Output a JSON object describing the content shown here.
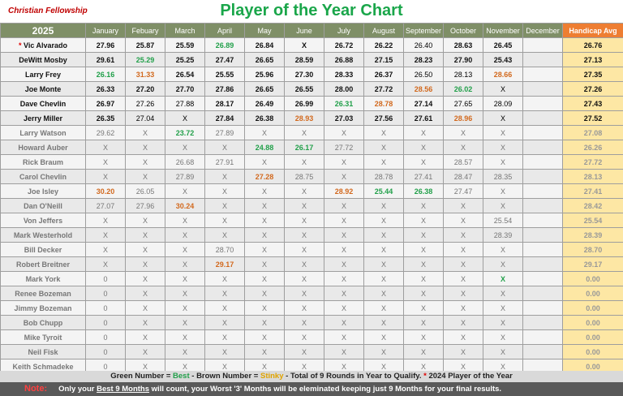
{
  "brand": "Christian Fellowship",
  "title": "Player of the Year Chart",
  "header": {
    "year": "2025",
    "months": [
      "January",
      "Febuary",
      "March",
      "April",
      "May",
      "June",
      "July",
      "August",
      "September",
      "October",
      "November",
      "December"
    ],
    "handicap": "Handicap Avg"
  },
  "rows": [
    {
      "name": "Vic Alvarado",
      "star": true,
      "cells": [
        [
          "27.96",
          "s"
        ],
        [
          "25.87",
          "s"
        ],
        [
          "25.59",
          "s"
        ],
        [
          "26.89",
          "g"
        ],
        [
          "26.84",
          "s"
        ],
        [
          "X",
          "xx"
        ],
        [
          "26.72",
          "s"
        ],
        [
          "26.22",
          "s"
        ],
        [
          "26.40",
          ""
        ],
        [
          "28.63",
          "s"
        ],
        [
          "26.45",
          "s"
        ],
        [
          "",
          ""
        ]
      ],
      "avg": "26.76",
      "dim": false
    },
    {
      "name": "DeWitt Mosby",
      "cells": [
        [
          "29.61",
          "s"
        ],
        [
          "25.29",
          "g"
        ],
        [
          "25.25",
          "s"
        ],
        [
          "27.47",
          "s"
        ],
        [
          "26.65",
          "s"
        ],
        [
          "28.59",
          "s"
        ],
        [
          "26.88",
          "s"
        ],
        [
          "27.15",
          "s"
        ],
        [
          "28.23",
          "s"
        ],
        [
          "27.90",
          "s"
        ],
        [
          "25.43",
          "s"
        ],
        [
          "",
          ""
        ]
      ],
      "avg": "27.13",
      "dim": false
    },
    {
      "name": "Larry Frey",
      "cells": [
        [
          "26.16",
          "g"
        ],
        [
          "31.33",
          "b"
        ],
        [
          "26.54",
          "s"
        ],
        [
          "25.55",
          "s"
        ],
        [
          "25.96",
          "s"
        ],
        [
          "27.30",
          "s"
        ],
        [
          "28.33",
          "s"
        ],
        [
          "26.37",
          "s"
        ],
        [
          "26.50",
          ""
        ],
        [
          "28.13",
          ""
        ],
        [
          "28.66",
          "b"
        ],
        [
          "",
          ""
        ]
      ],
      "avg": "27.35",
      "dim": false
    },
    {
      "name": "Joe Monte",
      "cells": [
        [
          "26.33",
          "s"
        ],
        [
          "27.20",
          "s"
        ],
        [
          "27.70",
          "s"
        ],
        [
          "27.86",
          "s"
        ],
        [
          "26.65",
          "s"
        ],
        [
          "26.55",
          "s"
        ],
        [
          "28.00",
          "s"
        ],
        [
          "27.72",
          "s"
        ],
        [
          "28.56",
          "b"
        ],
        [
          "26.02",
          "g"
        ],
        [
          "X",
          ""
        ],
        [
          "",
          ""
        ]
      ],
      "avg": "27.26",
      "dim": false
    },
    {
      "name": "Dave Chevlin",
      "cells": [
        [
          "26.97",
          "s"
        ],
        [
          "27.26",
          ""
        ],
        [
          "27.88",
          ""
        ],
        [
          "28.17",
          "s"
        ],
        [
          "26.49",
          "s"
        ],
        [
          "26.99",
          "s"
        ],
        [
          "26.31",
          "g"
        ],
        [
          "28.78",
          "b"
        ],
        [
          "27.14",
          "s"
        ],
        [
          "27.65",
          ""
        ],
        [
          "28.09",
          ""
        ],
        [
          "",
          ""
        ]
      ],
      "avg": "27.43",
      "dim": false
    },
    {
      "name": "Jerry Miller",
      "cells": [
        [
          "26.35",
          "s"
        ],
        [
          "27.04",
          ""
        ],
        [
          "X",
          ""
        ],
        [
          "27.84",
          "s"
        ],
        [
          "26.38",
          "s"
        ],
        [
          "28.93",
          "b"
        ],
        [
          "27.03",
          "s"
        ],
        [
          "27.56",
          "s"
        ],
        [
          "27.61",
          "s"
        ],
        [
          "28.96",
          "b"
        ],
        [
          "X",
          ""
        ],
        [
          "",
          ""
        ]
      ],
      "avg": "27.52",
      "dim": false
    },
    {
      "name": "Larry Watson",
      "cells": [
        [
          "29.62",
          ""
        ],
        [
          "X",
          ""
        ],
        [
          "23.72",
          "g"
        ],
        [
          "27.89",
          ""
        ],
        [
          "X",
          ""
        ],
        [
          "X",
          ""
        ],
        [
          "X",
          ""
        ],
        [
          "X",
          ""
        ],
        [
          "X",
          ""
        ],
        [
          "X",
          ""
        ],
        [
          "X",
          ""
        ],
        [
          "",
          ""
        ]
      ],
      "avg": "27.08",
      "dim": true
    },
    {
      "name": "Howard Auber",
      "cells": [
        [
          "X",
          ""
        ],
        [
          "X",
          ""
        ],
        [
          "X",
          ""
        ],
        [
          "X",
          ""
        ],
        [
          "24.88",
          "g"
        ],
        [
          "26.17",
          "g"
        ],
        [
          "27.72",
          ""
        ],
        [
          "X",
          ""
        ],
        [
          "X",
          ""
        ],
        [
          "X",
          ""
        ],
        [
          "X",
          ""
        ],
        [
          "",
          ""
        ]
      ],
      "avg": "26.26",
      "dim": true
    },
    {
      "name": "Rick Braum",
      "cells": [
        [
          "X",
          ""
        ],
        [
          "X",
          ""
        ],
        [
          "26.68",
          ""
        ],
        [
          "27.91",
          ""
        ],
        [
          "X",
          ""
        ],
        [
          "X",
          ""
        ],
        [
          "X",
          ""
        ],
        [
          "X",
          ""
        ],
        [
          "X",
          ""
        ],
        [
          "28.57",
          ""
        ],
        [
          "X",
          ""
        ],
        [
          "",
          ""
        ]
      ],
      "avg": "27.72",
      "dim": true
    },
    {
      "name": "Carol Chevlin",
      "cells": [
        [
          "X",
          ""
        ],
        [
          "X",
          ""
        ],
        [
          "27.89",
          ""
        ],
        [
          "X",
          ""
        ],
        [
          "27.28",
          "b"
        ],
        [
          "28.75",
          ""
        ],
        [
          "X",
          ""
        ],
        [
          "28.78",
          ""
        ],
        [
          "27.41",
          ""
        ],
        [
          "28.47",
          ""
        ],
        [
          "28.35",
          ""
        ],
        [
          "",
          ""
        ]
      ],
      "avg": "28.13",
      "dim": true
    },
    {
      "name": "Joe Isley",
      "cells": [
        [
          "30.20",
          "b"
        ],
        [
          "26.05",
          ""
        ],
        [
          "X",
          ""
        ],
        [
          "X",
          ""
        ],
        [
          "X",
          ""
        ],
        [
          "X",
          ""
        ],
        [
          "28.92",
          "b"
        ],
        [
          "25.44",
          "g"
        ],
        [
          "26.38",
          "g"
        ],
        [
          "27.47",
          ""
        ],
        [
          "X",
          ""
        ],
        [
          "",
          ""
        ]
      ],
      "avg": "27.41",
      "dim": true
    },
    {
      "name": "Dan O'Neill",
      "cells": [
        [
          "27.07",
          ""
        ],
        [
          "27.96",
          ""
        ],
        [
          "30.24",
          "b"
        ],
        [
          "X",
          ""
        ],
        [
          "X",
          ""
        ],
        [
          "X",
          ""
        ],
        [
          "X",
          ""
        ],
        [
          "X",
          ""
        ],
        [
          "X",
          ""
        ],
        [
          "X",
          ""
        ],
        [
          "X",
          ""
        ],
        [
          "",
          ""
        ]
      ],
      "avg": "28.42",
      "dim": true
    },
    {
      "name": "Von Jeffers",
      "cells": [
        [
          "X",
          ""
        ],
        [
          "X",
          ""
        ],
        [
          "X",
          ""
        ],
        [
          "X",
          ""
        ],
        [
          "X",
          ""
        ],
        [
          "X",
          ""
        ],
        [
          "X",
          ""
        ],
        [
          "X",
          ""
        ],
        [
          "X",
          ""
        ],
        [
          "X",
          ""
        ],
        [
          "25.54",
          ""
        ],
        [
          "",
          ""
        ]
      ],
      "avg": "25.54",
      "dim": true
    },
    {
      "name": "Mark Westerhold",
      "cells": [
        [
          "X",
          ""
        ],
        [
          "X",
          ""
        ],
        [
          "X",
          ""
        ],
        [
          "X",
          ""
        ],
        [
          "X",
          ""
        ],
        [
          "X",
          ""
        ],
        [
          "X",
          ""
        ],
        [
          "X",
          ""
        ],
        [
          "X",
          ""
        ],
        [
          "X",
          ""
        ],
        [
          "28.39",
          ""
        ],
        [
          "",
          ""
        ]
      ],
      "avg": "28.39",
      "dim": true
    },
    {
      "name": "Bill Decker",
      "cells": [
        [
          "X",
          ""
        ],
        [
          "X",
          ""
        ],
        [
          "X",
          ""
        ],
        [
          "28.70",
          ""
        ],
        [
          "X",
          ""
        ],
        [
          "X",
          ""
        ],
        [
          "X",
          ""
        ],
        [
          "X",
          ""
        ],
        [
          "X",
          ""
        ],
        [
          "X",
          ""
        ],
        [
          "X",
          ""
        ],
        [
          "",
          ""
        ]
      ],
      "avg": "28.70",
      "dim": true
    },
    {
      "name": "Robert Breitner",
      "cells": [
        [
          "X",
          ""
        ],
        [
          "X",
          ""
        ],
        [
          "X",
          ""
        ],
        [
          "29.17",
          "b"
        ],
        [
          "X",
          ""
        ],
        [
          "X",
          ""
        ],
        [
          "X",
          ""
        ],
        [
          "X",
          ""
        ],
        [
          "X",
          ""
        ],
        [
          "X",
          ""
        ],
        [
          "X",
          ""
        ],
        [
          "",
          ""
        ]
      ],
      "avg": "29.17",
      "dim": true
    },
    {
      "name": "Mark York",
      "cells": [
        [
          "0",
          ""
        ],
        [
          "X",
          ""
        ],
        [
          "X",
          ""
        ],
        [
          "X",
          ""
        ],
        [
          "X",
          ""
        ],
        [
          "X",
          ""
        ],
        [
          "X",
          ""
        ],
        [
          "X",
          ""
        ],
        [
          "X",
          ""
        ],
        [
          "X",
          ""
        ],
        [
          "X",
          "g"
        ],
        [
          "",
          ""
        ]
      ],
      "avg": "0.00",
      "dim": true
    },
    {
      "name": "Renee Bozeman",
      "cells": [
        [
          "0",
          ""
        ],
        [
          "X",
          ""
        ],
        [
          "X",
          ""
        ],
        [
          "X",
          ""
        ],
        [
          "X",
          ""
        ],
        [
          "X",
          ""
        ],
        [
          "X",
          ""
        ],
        [
          "X",
          ""
        ],
        [
          "X",
          ""
        ],
        [
          "X",
          ""
        ],
        [
          "X",
          ""
        ],
        [
          "",
          ""
        ]
      ],
      "avg": "0.00",
      "dim": true
    },
    {
      "name": "Jimmy  Bozeman",
      "cells": [
        [
          "0",
          ""
        ],
        [
          "X",
          ""
        ],
        [
          "X",
          ""
        ],
        [
          "X",
          ""
        ],
        [
          "X",
          ""
        ],
        [
          "X",
          ""
        ],
        [
          "X",
          ""
        ],
        [
          "X",
          ""
        ],
        [
          "X",
          ""
        ],
        [
          "X",
          ""
        ],
        [
          "X",
          ""
        ],
        [
          "",
          ""
        ]
      ],
      "avg": "0.00",
      "dim": true
    },
    {
      "name": "Bob Chupp",
      "cells": [
        [
          "0",
          ""
        ],
        [
          "X",
          ""
        ],
        [
          "X",
          ""
        ],
        [
          "X",
          ""
        ],
        [
          "X",
          ""
        ],
        [
          "X",
          ""
        ],
        [
          "X",
          ""
        ],
        [
          "X",
          ""
        ],
        [
          "X",
          ""
        ],
        [
          "X",
          ""
        ],
        [
          "X",
          ""
        ],
        [
          "",
          ""
        ]
      ],
      "avg": "0.00",
      "dim": true
    },
    {
      "name": "Mike Tyroit",
      "cells": [
        [
          "0",
          ""
        ],
        [
          "X",
          ""
        ],
        [
          "X",
          ""
        ],
        [
          "X",
          ""
        ],
        [
          "X",
          ""
        ],
        [
          "X",
          ""
        ],
        [
          "X",
          ""
        ],
        [
          "X",
          ""
        ],
        [
          "X",
          ""
        ],
        [
          "X",
          ""
        ],
        [
          "X",
          ""
        ],
        [
          "",
          ""
        ]
      ],
      "avg": "0.00",
      "dim": true
    },
    {
      "name": "Neil Fisk",
      "cells": [
        [
          "0",
          ""
        ],
        [
          "X",
          ""
        ],
        [
          "X",
          ""
        ],
        [
          "X",
          ""
        ],
        [
          "X",
          ""
        ],
        [
          "X",
          ""
        ],
        [
          "X",
          ""
        ],
        [
          "X",
          ""
        ],
        [
          "X",
          ""
        ],
        [
          "X",
          ""
        ],
        [
          "X",
          ""
        ],
        [
          "",
          ""
        ]
      ],
      "avg": "0.00",
      "dim": true
    },
    {
      "name": "Keith Schmadeke",
      "cells": [
        [
          "0",
          ""
        ],
        [
          "X",
          ""
        ],
        [
          "X",
          ""
        ],
        [
          "X",
          ""
        ],
        [
          "X",
          ""
        ],
        [
          "X",
          ""
        ],
        [
          "X",
          ""
        ],
        [
          "X",
          ""
        ],
        [
          "X",
          ""
        ],
        [
          "X",
          ""
        ],
        [
          "X",
          ""
        ],
        [
          "",
          ""
        ]
      ],
      "avg": "0.00",
      "dim": true
    }
  ],
  "legend": {
    "green_prefix": "Green Number = ",
    "green_word": "Best",
    "brown_prefix": "  -   Brown Number = ",
    "brown_word": "Stinky",
    "rest": "  -   Total of 9 Rounds in Year to Qualify.     ",
    "star": "*",
    "star_text": "  2024 Player of the Year"
  },
  "note": {
    "label": "Note:",
    "pre": "Only your ",
    "underlined": "Best 9 Months",
    "post": " will count, your Worst '3' Months will be eleminated keeping just 9 Months for your final results."
  }
}
